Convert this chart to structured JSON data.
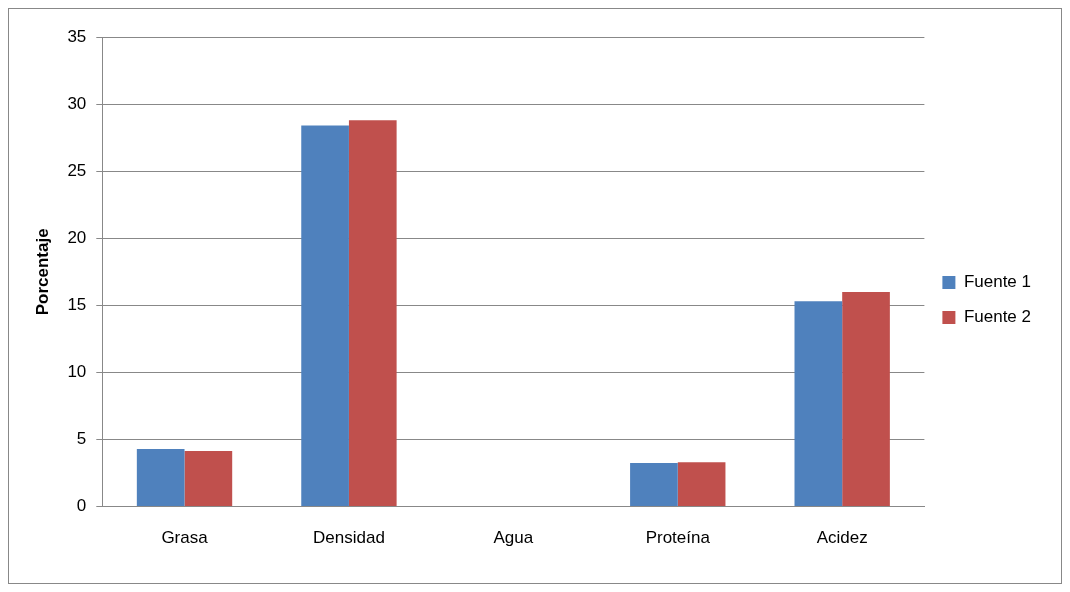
{
  "chart_data": {
    "type": "bar",
    "ylabel": "Porcentaje",
    "categories": [
      "Grasa",
      "Densidad",
      "Agua",
      "Proteína",
      "Acidez"
    ],
    "series": [
      {
        "name": "Fuente 1",
        "color": "#4f81bd",
        "values": [
          4.3,
          28.4,
          0,
          3.25,
          15.3
        ]
      },
      {
        "name": "Fuente 2",
        "color": "#c0504d",
        "values": [
          4.15,
          28.8,
          0,
          3.3,
          16.0
        ]
      }
    ],
    "ylim": [
      0,
      35
    ],
    "yticks": [
      0,
      5,
      10,
      15,
      20,
      25,
      30,
      35
    ],
    "grid": "y",
    "legend": "right"
  }
}
